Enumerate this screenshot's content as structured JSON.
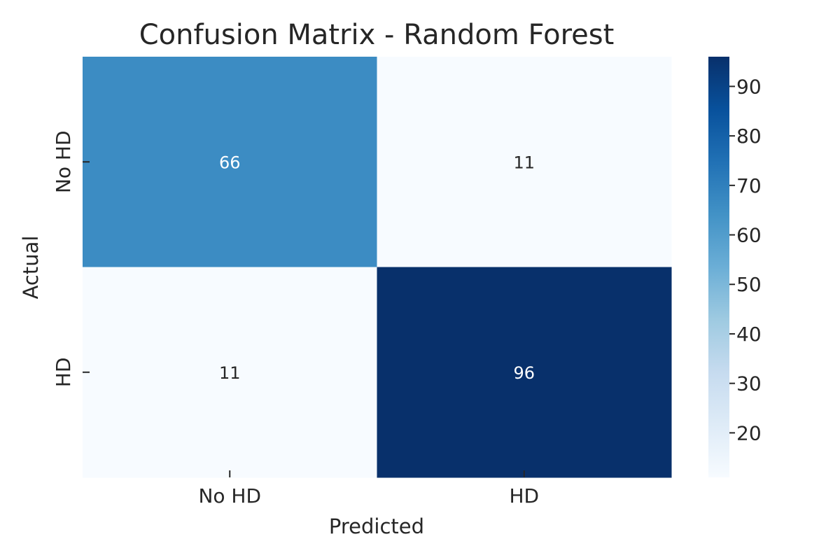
{
  "chart_data": {
    "type": "heatmap",
    "title": "Confusion Matrix - Random Forest",
    "xlabel": "Predicted",
    "ylabel": "Actual",
    "x_categories": [
      "No HD",
      "HD"
    ],
    "y_categories": [
      "No HD",
      "HD"
    ],
    "values": [
      [
        66,
        11
      ],
      [
        11,
        96
      ]
    ],
    "colormap": "Blues",
    "colorbar": {
      "min": 11,
      "max": 96,
      "ticks": [
        20,
        30,
        40,
        50,
        60,
        70,
        80,
        90
      ]
    },
    "annotation_colors": {
      "light": "#ffffff",
      "dark": "#262626"
    },
    "grid": false
  }
}
